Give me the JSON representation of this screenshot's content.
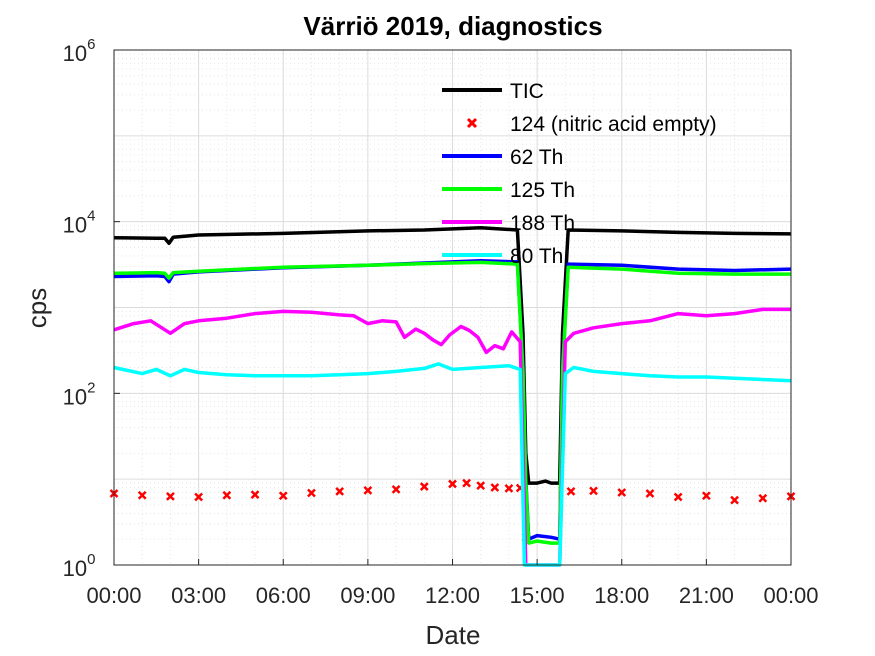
{
  "chart_data": {
    "type": "line",
    "title": "Värriö 2019, diagnostics",
    "xlabel": "Date",
    "ylabel": "cps",
    "yscale": "log",
    "ylim": [
      1,
      1000000
    ],
    "xlim_hours": [
      0,
      24
    ],
    "x_ticks": [
      "00:00",
      "03:00",
      "06:00",
      "09:00",
      "12:00",
      "15:00",
      "18:00",
      "21:00",
      "00:00"
    ],
    "y_ticks": [
      {
        "base": "10",
        "exp": "0"
      },
      {
        "base": "10",
        "exp": "2"
      },
      {
        "base": "10",
        "exp": "4"
      },
      {
        "base": "10",
        "exp": "6"
      }
    ],
    "grid": true,
    "legend_position": "top-right (inside)",
    "series": [
      {
        "name": "TIC",
        "color": "#000000",
        "marker": "line",
        "x": [
          0,
          1.5,
          1.8,
          1.95,
          2.1,
          3,
          6,
          9,
          11,
          13,
          14.3,
          14.5,
          14.6,
          14.7,
          15.0,
          15.3,
          15.5,
          15.8,
          15.9,
          16.1,
          18,
          20,
          22,
          24
        ],
        "y": [
          6500,
          6400,
          6400,
          5600,
          6600,
          7000,
          7300,
          7800,
          8000,
          8500,
          8000,
          500,
          20,
          9,
          9,
          9.5,
          9,
          9,
          500,
          8000,
          7800,
          7500,
          7300,
          7200
        ]
      },
      {
        "name": "124 (nitric acid empty)",
        "color": "#ff0000",
        "marker": "x",
        "x": [
          0,
          1,
          2,
          3,
          4,
          5,
          6,
          7,
          8,
          9,
          10,
          11,
          12,
          12.5,
          13,
          13.5,
          14,
          14.4,
          14.6,
          16.2,
          17,
          18,
          19,
          20,
          21,
          22,
          23,
          24
        ],
        "y": [
          6.8,
          6.5,
          6.3,
          6.2,
          6.5,
          6.6,
          6.4,
          6.9,
          7.2,
          7.4,
          7.6,
          8.2,
          8.8,
          9.0,
          8.4,
          8.0,
          7.8,
          7.9,
          2.1,
          7.2,
          7.3,
          7.0,
          6.8,
          6.2,
          6.4,
          5.7,
          6.0,
          6.3
        ]
      },
      {
        "name": "62 Th",
        "color": "#0000ff",
        "marker": "line",
        "x": [
          0,
          1.5,
          1.8,
          1.95,
          2.1,
          3,
          6,
          9,
          11,
          12,
          13,
          14.3,
          14.5,
          14.6,
          14.7,
          15.0,
          15.5,
          15.8,
          15.9,
          16.1,
          18,
          20,
          22,
          24
        ],
        "y": [
          2300,
          2350,
          2300,
          2000,
          2450,
          2600,
          2900,
          3100,
          3300,
          3400,
          3500,
          3400,
          200,
          10,
          2.0,
          2.2,
          2.1,
          2.0,
          200,
          3200,
          3100,
          2800,
          2700,
          2800
        ]
      },
      {
        "name": "125 Th",
        "color": "#00ff00",
        "marker": "line",
        "x": [
          0,
          1.5,
          1.8,
          1.95,
          2.1,
          3,
          6,
          9,
          11,
          12,
          13,
          14.3,
          14.5,
          14.6,
          14.7,
          15.0,
          15.5,
          15.8,
          15.9,
          16.1,
          18,
          20,
          22,
          24
        ],
        "y": [
          2500,
          2550,
          2500,
          2200,
          2550,
          2650,
          2950,
          3100,
          3250,
          3300,
          3350,
          3200,
          180,
          9,
          1.8,
          1.9,
          1.8,
          1.8,
          180,
          2950,
          2800,
          2500,
          2450,
          2450
        ]
      },
      {
        "name": "188 Th",
        "color": "#ff00ff",
        "marker": "line",
        "x": [
          0,
          0.7,
          1.3,
          2.0,
          2.5,
          3.0,
          4.0,
          5.0,
          6.0,
          7.0,
          8.0,
          8.5,
          9.0,
          9.5,
          10.0,
          10.3,
          10.7,
          11.0,
          11.3,
          11.6,
          11.9,
          12.3,
          12.6,
          12.9,
          13.2,
          13.5,
          13.8,
          14.1,
          14.4,
          14.6,
          15.8,
          16.0,
          16.3,
          17,
          18,
          19,
          20,
          21,
          22,
          23,
          24
        ],
        "y": [
          550,
          650,
          700,
          500,
          650,
          700,
          750,
          850,
          900,
          880,
          820,
          800,
          650,
          700,
          680,
          450,
          560,
          500,
          420,
          370,
          480,
          600,
          540,
          450,
          300,
          360,
          330,
          520,
          400,
          1,
          1,
          400,
          500,
          580,
          650,
          700,
          850,
          800,
          850,
          950,
          950
        ]
      },
      {
        "name": "80 Th",
        "color": "#00ffff",
        "marker": "line",
        "x": [
          0,
          1.0,
          1.5,
          2.0,
          2.5,
          3.0,
          4.0,
          5.0,
          6.0,
          7.0,
          8.0,
          9.0,
          10.0,
          11.0,
          11.5,
          12.0,
          13.0,
          14.0,
          14.4,
          14.55,
          15.8,
          16.0,
          16.3,
          17,
          18,
          19,
          20,
          21,
          22,
          23,
          24
        ],
        "y": [
          200,
          170,
          190,
          160,
          190,
          175,
          165,
          160,
          160,
          160,
          165,
          170,
          180,
          195,
          220,
          190,
          200,
          210,
          190,
          1,
          1,
          170,
          200,
          180,
          170,
          160,
          155,
          155,
          150,
          145,
          140
        ]
      }
    ]
  }
}
